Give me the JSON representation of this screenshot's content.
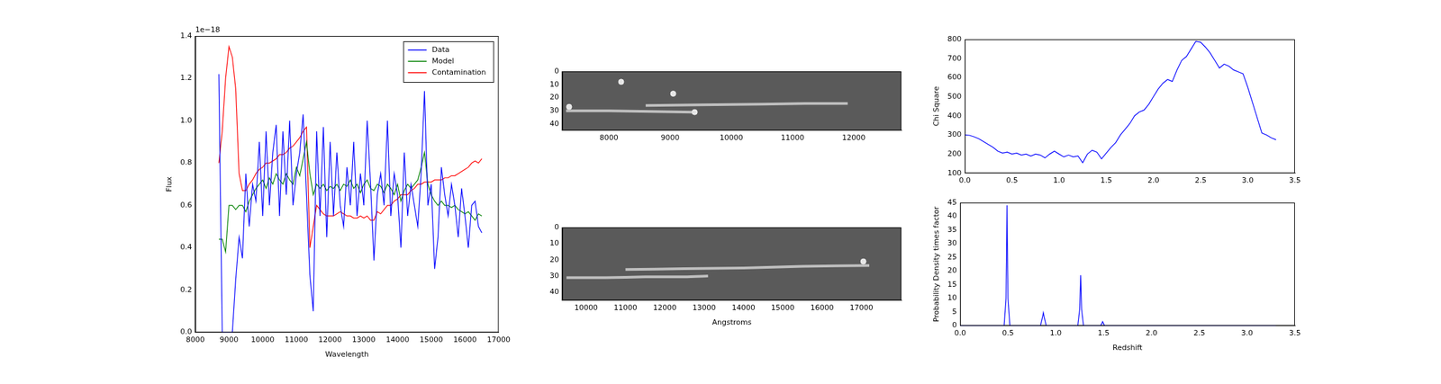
{
  "chart_data": [
    {
      "type": "line",
      "x_label": "Wavelength",
      "y_label": "Flux",
      "annotations": [
        "1e−18"
      ],
      "legend": "upper right",
      "xlim": [
        8000,
        17000
      ],
      "xticks": [
        8000,
        9000,
        10000,
        11000,
        12000,
        13000,
        14000,
        15000,
        16000,
        17000
      ],
      "ylim": [
        0,
        1.4
      ],
      "yticks": [
        {
          "value": 0,
          "label": "0.0"
        },
        {
          "value": 0.2,
          "label": "0.2"
        },
        {
          "value": 0.4,
          "label": "0.4"
        },
        {
          "value": 0.6,
          "label": "0.6"
        },
        {
          "value": 0.8,
          "label": "0.8"
        },
        {
          "value": 1.0,
          "label": "1.0"
        },
        {
          "value": 1.2,
          "label": "1.2"
        },
        {
          "value": 1.4,
          "label": "1.4"
        }
      ],
      "grid": false,
      "x": [
        8700,
        8800,
        8900,
        9000,
        9100,
        9200,
        9300,
        9400,
        9500,
        9600,
        9700,
        9800,
        9900,
        10000,
        10100,
        10200,
        10300,
        10400,
        10500,
        10600,
        10700,
        10800,
        10900,
        11000,
        11100,
        11200,
        11300,
        11400,
        11500,
        11600,
        11700,
        11800,
        11900,
        12000,
        12100,
        12200,
        12300,
        12400,
        12500,
        12600,
        12700,
        12800,
        12900,
        13000,
        13100,
        13200,
        13300,
        13400,
        13500,
        13600,
        13700,
        13800,
        13900,
        14000,
        14100,
        14200,
        14300,
        14400,
        14500,
        14600,
        14700,
        14800,
        14900,
        15000,
        15100,
        15200,
        15300,
        15400,
        15500,
        15600,
        15700,
        15800,
        15900,
        16000,
        16100,
        16200,
        16300,
        16400,
        16500
      ],
      "series": [
        {
          "name": "Data",
          "color": "#0000ff",
          "values": [
            1.22,
            0.0,
            0.0,
            0.0,
            0.0,
            0.25,
            0.45,
            0.35,
            0.75,
            0.5,
            0.7,
            0.62,
            0.9,
            0.55,
            0.95,
            0.6,
            0.85,
            0.98,
            0.55,
            0.95,
            0.65,
            1.0,
            0.6,
            0.75,
            0.85,
            1.03,
            0.65,
            0.27,
            0.1,
            0.95,
            0.55,
            0.97,
            0.45,
            0.9,
            0.55,
            0.85,
            0.6,
            0.5,
            0.78,
            0.6,
            0.9,
            0.55,
            0.75,
            0.6,
            1.0,
            0.7,
            0.34,
            0.65,
            0.75,
            0.6,
            1.0,
            0.55,
            0.75,
            0.65,
            0.4,
            0.85,
            0.55,
            0.7,
            0.6,
            0.5,
            0.75,
            1.14,
            0.6,
            0.7,
            0.3,
            0.45,
            0.78,
            0.65,
            0.55,
            0.7,
            0.6,
            0.45,
            0.68,
            0.55,
            0.4,
            0.6,
            0.62,
            0.5,
            0.47
          ]
        },
        {
          "name": "Model",
          "color": "#008000",
          "values": [
            0.44,
            0.44,
            0.38,
            0.6,
            0.6,
            0.58,
            0.6,
            0.6,
            0.57,
            0.62,
            0.65,
            0.68,
            0.7,
            0.72,
            0.68,
            0.73,
            0.7,
            0.75,
            0.72,
            0.7,
            0.75,
            0.72,
            0.7,
            0.78,
            0.74,
            0.82,
            0.9,
            0.75,
            0.65,
            0.7,
            0.68,
            0.7,
            0.67,
            0.69,
            0.68,
            0.7,
            0.67,
            0.7,
            0.69,
            0.72,
            0.68,
            0.7,
            0.66,
            0.7,
            0.72,
            0.68,
            0.67,
            0.7,
            0.69,
            0.66,
            0.7,
            0.68,
            0.65,
            0.7,
            0.62,
            0.67,
            0.7,
            0.68,
            0.7,
            0.72,
            0.78,
            0.85,
            0.7,
            0.65,
            0.62,
            0.6,
            0.62,
            0.6,
            0.6,
            0.59,
            0.6,
            0.58,
            0.57,
            0.56,
            0.57,
            0.55,
            0.53,
            0.56,
            0.55
          ]
        },
        {
          "name": "Contamination",
          "color": "#ff0000",
          "values": [
            0.8,
            0.95,
            1.2,
            1.35,
            1.3,
            1.15,
            0.75,
            0.67,
            0.67,
            0.7,
            0.72,
            0.75,
            0.77,
            0.78,
            0.8,
            0.8,
            0.81,
            0.82,
            0.84,
            0.84,
            0.85,
            0.87,
            0.88,
            0.9,
            0.92,
            0.95,
            0.97,
            0.4,
            0.5,
            0.6,
            0.58,
            0.56,
            0.55,
            0.55,
            0.55,
            0.56,
            0.57,
            0.56,
            0.55,
            0.55,
            0.54,
            0.54,
            0.55,
            0.54,
            0.55,
            0.53,
            0.53,
            0.57,
            0.56,
            0.58,
            0.6,
            0.6,
            0.62,
            0.63,
            0.65,
            0.65,
            0.65,
            0.67,
            0.68,
            0.7,
            0.7,
            0.71,
            0.71,
            0.71,
            0.72,
            0.72,
            0.72,
            0.73,
            0.73,
            0.74,
            0.74,
            0.75,
            0.76,
            0.77,
            0.78,
            0.8,
            0.81,
            0.8,
            0.82
          ]
        }
      ]
    },
    {
      "type": "image",
      "xlim": [
        7240,
        12775
      ],
      "xticks": [
        8000,
        9000,
        10000,
        11000,
        12000
      ],
      "ylim": [
        45,
        0
      ],
      "yticks": [
        0,
        10,
        20,
        30,
        40
      ],
      "traces": [
        {
          "x": [
            7300,
            8000,
            8700,
            9400
          ],
          "y": [
            30,
            30,
            30.5,
            31
          ]
        },
        {
          "x": [
            8600,
            9500,
            10500,
            11200,
            11900
          ],
          "y": [
            26,
            25.5,
            25,
            24.5,
            24.5
          ]
        }
      ],
      "sources": {
        "x": [
          9050,
          8200,
          9400,
          7350
        ],
        "y": [
          17,
          8,
          31,
          27
        ]
      }
    },
    {
      "type": "image",
      "x_label": "Angstroms",
      "xlim": [
        9396,
        18014
      ],
      "xticks": [
        10000,
        11000,
        12000,
        13000,
        14000,
        15000,
        16000,
        17000
      ],
      "ylim": [
        45,
        0
      ],
      "yticks": [
        0,
        10,
        20,
        30,
        40
      ],
      "traces": [
        {
          "x": [
            9500,
            10500,
            11500,
            12500,
            13100
          ],
          "y": [
            31,
            31,
            30.5,
            30.5,
            30
          ]
        },
        {
          "x": [
            11000,
            12500,
            14000,
            15500,
            17200
          ],
          "y": [
            26,
            25.5,
            25,
            24,
            23.5
          ]
        }
      ],
      "sources": {
        "x": [
          17050
        ],
        "y": [
          21
        ]
      }
    },
    {
      "type": "line",
      "y_label": "Chi Square",
      "xlim": [
        0,
        3.5
      ],
      "xticks": [
        {
          "value": 0,
          "label": "0.0"
        },
        {
          "value": 0.5,
          "label": "0.5"
        },
        {
          "value": 1.0,
          "label": "1.0"
        },
        {
          "value": 1.5,
          "label": "1.5"
        },
        {
          "value": 2.0,
          "label": "2.0"
        },
        {
          "value": 2.5,
          "label": "2.5"
        },
        {
          "value": 3.0,
          "label": "3.0"
        },
        {
          "value": 3.5,
          "label": "3.5"
        }
      ],
      "ylim": [
        100,
        800
      ],
      "yticks": [
        100,
        200,
        300,
        400,
        500,
        600,
        700,
        800
      ],
      "grid": false,
      "x": [
        0,
        0.05,
        0.1,
        0.15,
        0.2,
        0.25,
        0.3,
        0.35,
        0.4,
        0.45,
        0.5,
        0.55,
        0.6,
        0.65,
        0.7,
        0.75,
        0.8,
        0.85,
        0.9,
        0.95,
        1.0,
        1.05,
        1.1,
        1.15,
        1.2,
        1.25,
        1.3,
        1.35,
        1.4,
        1.45,
        1.5,
        1.55,
        1.6,
        1.65,
        1.7,
        1.75,
        1.8,
        1.85,
        1.9,
        1.95,
        2.0,
        2.05,
        2.1,
        2.15,
        2.2,
        2.25,
        2.3,
        2.35,
        2.4,
        2.45,
        2.5,
        2.55,
        2.6,
        2.65,
        2.7,
        2.75,
        2.8,
        2.85,
        2.9,
        2.95,
        3.0,
        3.05,
        3.1,
        3.15,
        3.2,
        3.25,
        3.3
      ],
      "series": [
        {
          "color": "#0000ff",
          "values": [
            300,
            298,
            290,
            280,
            265,
            250,
            235,
            215,
            205,
            210,
            200,
            205,
            195,
            200,
            190,
            200,
            195,
            180,
            200,
            215,
            200,
            185,
            195,
            185,
            190,
            155,
            200,
            220,
            210,
            175,
            205,
            235,
            260,
            300,
            330,
            360,
            400,
            420,
            430,
            460,
            500,
            540,
            570,
            590,
            580,
            640,
            690,
            710,
            750,
            790,
            785,
            760,
            730,
            690,
            650,
            670,
            660,
            640,
            630,
            620,
            550,
            470,
            390,
            310,
            300,
            285,
            275
          ]
        }
      ]
    },
    {
      "type": "line",
      "x_label": "Redshift",
      "y_label": "Probability Density times factor",
      "xlim": [
        0,
        3.5
      ],
      "xticks": [
        {
          "value": 0,
          "label": "0.0"
        },
        {
          "value": 0.5,
          "label": "0.5"
        },
        {
          "value": 1.0,
          "label": "1.0"
        },
        {
          "value": 1.5,
          "label": "1.5"
        },
        {
          "value": 2.0,
          "label": "2.0"
        },
        {
          "value": 2.5,
          "label": "2.5"
        },
        {
          "value": 3.0,
          "label": "3.0"
        },
        {
          "value": 3.5,
          "label": "3.5"
        }
      ],
      "ylim": [
        0,
        45
      ],
      "yticks": [
        0,
        5,
        10,
        15,
        20,
        25,
        30,
        35,
        40,
        45
      ],
      "grid": false,
      "x": [
        0,
        0.46,
        0.48,
        0.49,
        0.5,
        0.52,
        0.84,
        0.86,
        0.87,
        0.88,
        0.9,
        1.23,
        1.25,
        1.26,
        1.27,
        1.29,
        1.47,
        1.49,
        1.51,
        3.3
      ],
      "series": [
        {
          "color": "#0000ff",
          "values": [
            0,
            0,
            10,
            44,
            10,
            0,
            0,
            3,
            4.8,
            3,
            0,
            0,
            6,
            18.5,
            6,
            0,
            0,
            1.5,
            0,
            0
          ]
        }
      ]
    }
  ]
}
